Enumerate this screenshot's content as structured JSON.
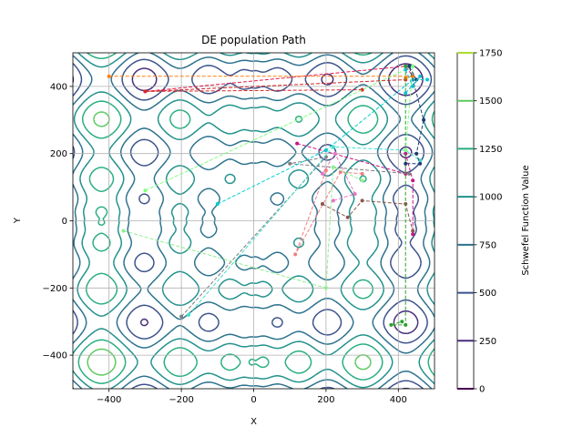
{
  "chart_data": {
    "type": "contour",
    "title": "DE population Path",
    "xlabel": "X",
    "ylabel": "Y",
    "xlim": [
      -500,
      500
    ],
    "ylim": [
      -500,
      500
    ],
    "xticks": [
      -400,
      -200,
      0,
      200,
      400
    ],
    "yticks": [
      400,
      200,
      0,
      -200,
      -400
    ],
    "grid": true,
    "colorbar": {
      "label": "Schwefel Function Value",
      "range": [
        0,
        1750
      ],
      "ticks": [
        0,
        250,
        500,
        750,
        1000,
        1250,
        1500,
        1750
      ],
      "colormap": "viridis",
      "levels": [
        {
          "value": 0,
          "color": "#440154"
        },
        {
          "value": 250,
          "color": "#472d7b"
        },
        {
          "value": 500,
          "color": "#3b528b"
        },
        {
          "value": 750,
          "color": "#2c728e"
        },
        {
          "value": 1000,
          "color": "#21918c"
        },
        {
          "value": 1250,
          "color": "#28ae80"
        },
        {
          "value": 1500,
          "color": "#5ec962"
        },
        {
          "value": 1750,
          "color": "#addc30"
        }
      ]
    },
    "paths": [
      {
        "color": "#e6194b",
        "points": [
          [
            -300,
            385
          ],
          [
            420,
            460
          ],
          [
            440,
            430
          ]
        ]
      },
      {
        "color": "#d62728",
        "points": [
          [
            300,
            390
          ],
          [
            -300,
            385
          ],
          [
            420,
            420
          ]
        ]
      },
      {
        "color": "#ff7f0e",
        "points": [
          [
            -400,
            430
          ],
          [
            440,
            430
          ],
          [
            420,
            425
          ]
        ]
      },
      {
        "color": "#c71585",
        "points": [
          [
            120,
            230
          ],
          [
            420,
            140
          ],
          [
            420,
            200
          ],
          [
            440,
            120
          ],
          [
            440,
            -40
          ]
        ]
      },
      {
        "color": "#e377c2",
        "points": [
          [
            190,
            140
          ],
          [
            225,
            200
          ],
          [
            280,
            80
          ],
          [
            220,
            60
          ]
        ]
      },
      {
        "color": "#f08080",
        "points": [
          [
            200,
            150
          ],
          [
            115,
            -100
          ],
          [
            240,
            145
          ],
          [
            300,
            140
          ]
        ]
      },
      {
        "color": "#8c564b",
        "points": [
          [
            190,
            50
          ],
          [
            260,
            10
          ],
          [
            300,
            60
          ],
          [
            420,
            50
          ],
          [
            440,
            -30
          ]
        ]
      },
      {
        "color": "#7f7f7f",
        "points": [
          [
            -200,
            -285
          ],
          [
            200,
            190
          ],
          [
            100,
            170
          ],
          [
            430,
            140
          ]
        ]
      },
      {
        "color": "#2ca02c",
        "points": [
          [
            420,
            460
          ],
          [
            420,
            -310
          ],
          [
            380,
            -310
          ],
          [
            410,
            -300
          ]
        ]
      },
      {
        "color": "#00ced1",
        "points": [
          [
            -100,
            50
          ],
          [
            200,
            210
          ],
          [
            440,
            420
          ],
          [
            480,
            420
          ]
        ]
      },
      {
        "color": "#40e0d0",
        "points": [
          [
            -180,
            -280
          ],
          [
            220,
            220
          ],
          [
            420,
            210
          ],
          [
            460,
            180
          ]
        ]
      },
      {
        "color": "#7fff7f",
        "points": [
          [
            -300,
            90
          ],
          [
            440,
            460
          ],
          [
            420,
            210
          ]
        ]
      },
      {
        "color": "#90ee90",
        "points": [
          [
            -360,
            -30
          ],
          [
            200,
            -200
          ],
          [
            220,
            160
          ],
          [
            300,
            120
          ]
        ]
      },
      {
        "color": "#1f3b73",
        "points": [
          [
            450,
            420
          ],
          [
            430,
            460
          ],
          [
            470,
            300
          ],
          [
            450,
            200
          ],
          [
            460,
            170
          ],
          [
            420,
            170
          ]
        ]
      },
      {
        "color": "#17becf",
        "points": [
          [
            420,
            450
          ],
          [
            440,
            400
          ],
          [
            460,
            430
          ],
          [
            420,
            380
          ]
        ]
      }
    ]
  }
}
